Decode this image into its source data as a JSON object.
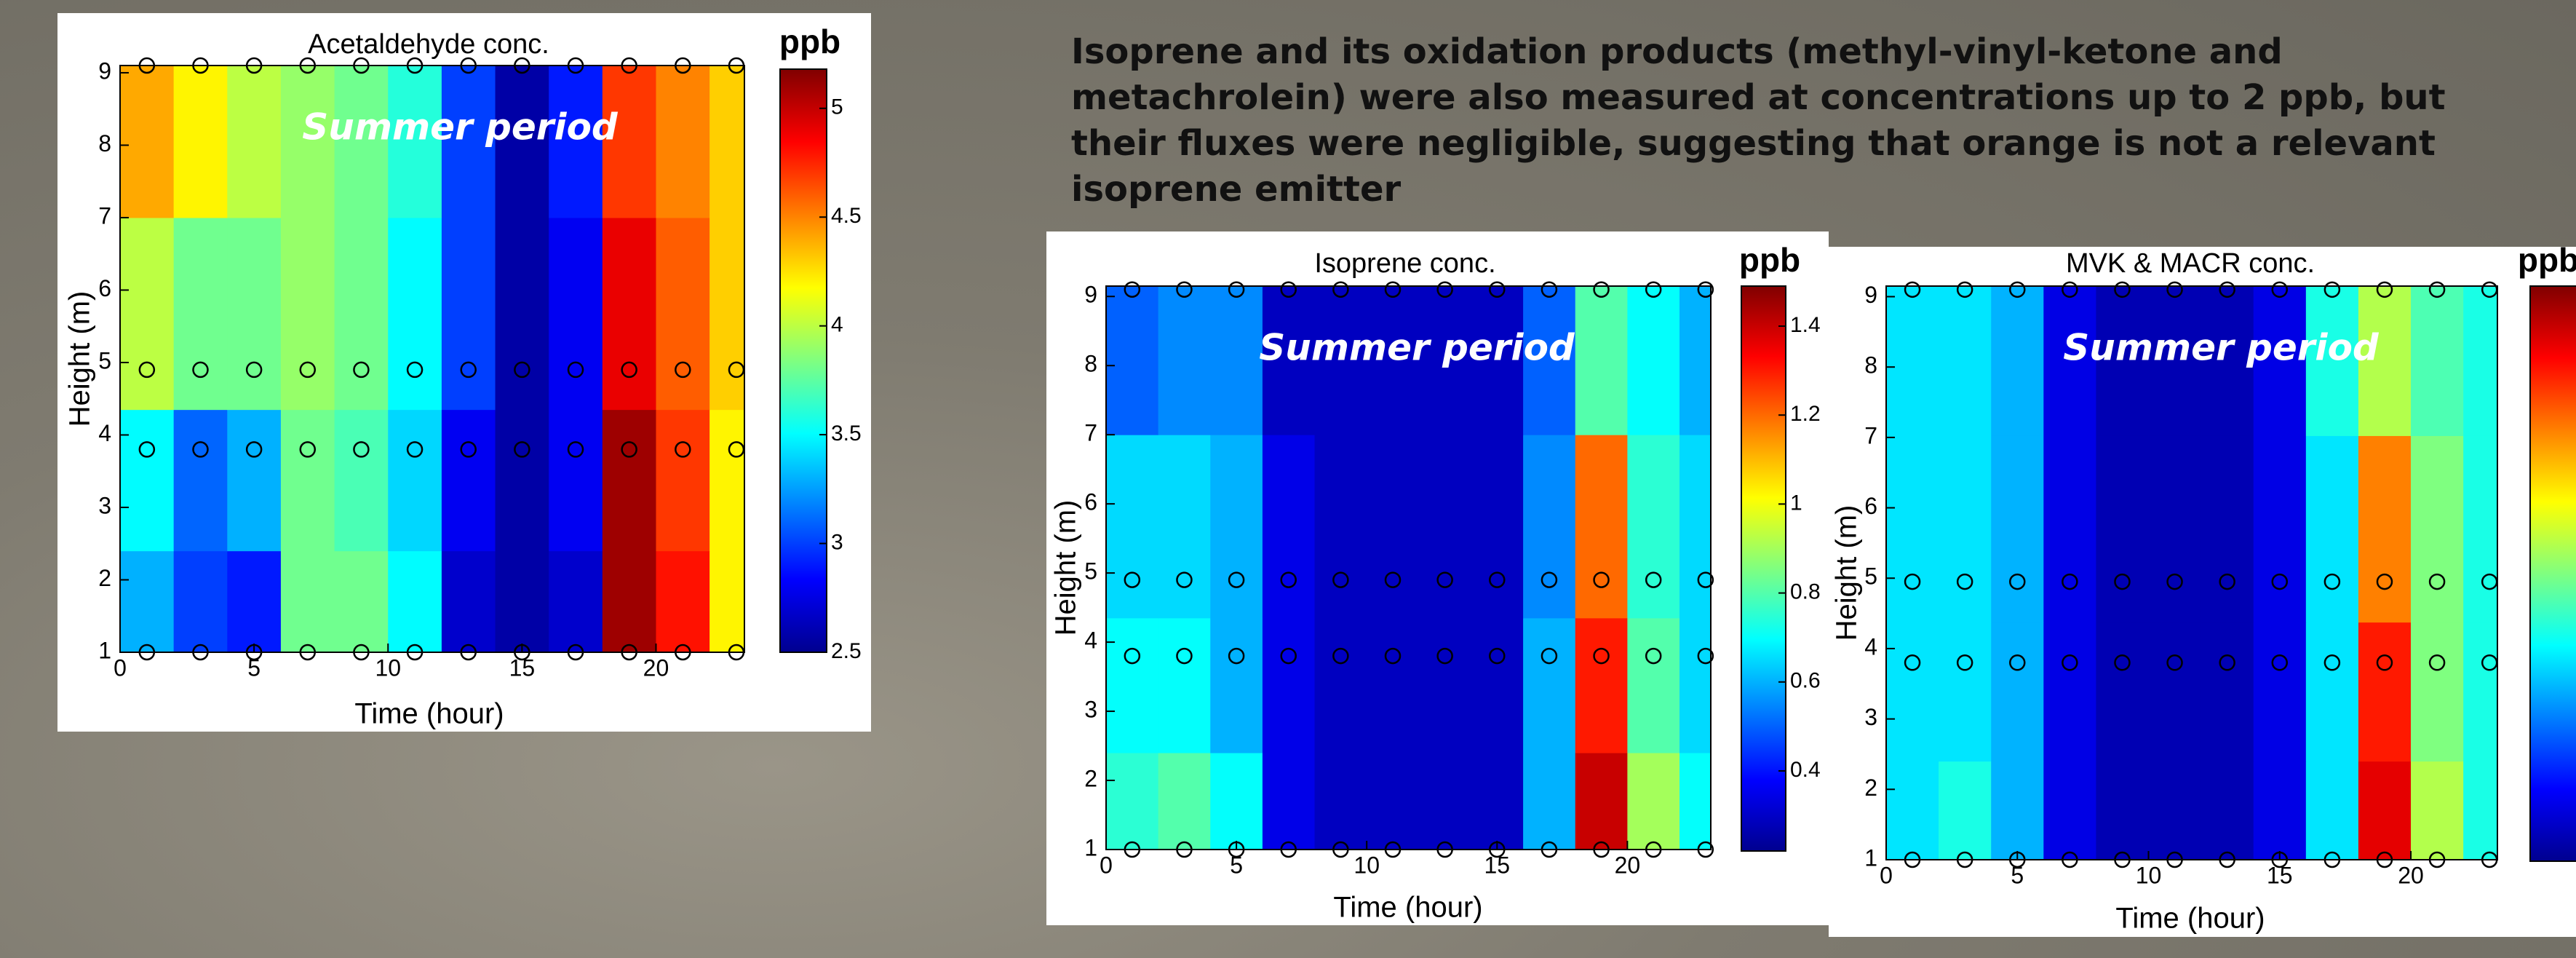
{
  "text": "Isoprene and its oxidation products (methyl-vinyl-ketone and metachrolein) were also measured at concentrations up to 2 ppb, but their fluxes were negligible, suggesting that orange is not a relevant isoprene emitter",
  "chart_data": [
    {
      "type": "contour",
      "title": "Acetaldehyde conc.",
      "annotation": "Summer period",
      "xlabel": "Time (hour)",
      "ylabel": "Height (m)",
      "colorbar_label": "ppb",
      "colormap": "jet",
      "x": [
        1,
        3,
        5,
        7,
        9,
        11,
        13,
        15,
        17,
        19,
        21,
        23
      ],
      "y": [
        1,
        3.8,
        4.9,
        9.1
      ],
      "values": [
        [
          3.3,
          3.0,
          2.9,
          3.8,
          3.8,
          3.5,
          2.7,
          2.6,
          2.7,
          5.1,
          4.8,
          4.2
        ],
        [
          3.5,
          3.1,
          3.3,
          3.8,
          3.7,
          3.4,
          2.8,
          2.6,
          2.8,
          5.1,
          4.7,
          4.2
        ],
        [
          4.0,
          3.8,
          3.8,
          3.9,
          3.8,
          3.5,
          3.0,
          2.6,
          2.8,
          4.9,
          4.6,
          4.3
        ],
        [
          4.4,
          4.2,
          4.0,
          3.9,
          3.8,
          3.6,
          3.0,
          2.6,
          2.9,
          4.7,
          4.5,
          4.3
        ]
      ],
      "xlim": [
        0,
        23.3
      ],
      "ylim": [
        1,
        9.1
      ],
      "xticks": [
        0,
        5,
        10,
        15,
        20
      ],
      "yticks": [
        1,
        2,
        3,
        4,
        5,
        6,
        7,
        8,
        9
      ],
      "zlim": [
        2.5,
        5.18
      ],
      "zticks": [
        2.5,
        3,
        3.5,
        4,
        4.5,
        5
      ]
    },
    {
      "type": "contour",
      "title": "Isoprene conc.",
      "annotation": "Summer period",
      "xlabel": "Time (hour)",
      "ylabel": "Height (m)",
      "colorbar_label": "ppb",
      "colormap": "jet",
      "x": [
        1,
        3,
        5,
        7,
        9,
        11,
        13,
        15,
        17,
        19,
        21,
        23
      ],
      "y": [
        1,
        3.8,
        4.9,
        9.1
      ],
      "values": [
        [
          0.75,
          0.8,
          0.7,
          0.35,
          0.3,
          0.3,
          0.3,
          0.3,
          0.6,
          1.4,
          0.9,
          0.7
        ],
        [
          0.7,
          0.7,
          0.6,
          0.35,
          0.3,
          0.3,
          0.3,
          0.3,
          0.6,
          1.3,
          0.8,
          0.65
        ],
        [
          0.65,
          0.65,
          0.6,
          0.35,
          0.3,
          0.3,
          0.3,
          0.3,
          0.55,
          1.2,
          0.75,
          0.65
        ],
        [
          0.5,
          0.55,
          0.55,
          0.3,
          0.3,
          0.3,
          0.3,
          0.3,
          0.5,
          0.8,
          0.7,
          0.6
        ]
      ],
      "xlim": [
        0,
        23.2
      ],
      "ylim": [
        1,
        9.15
      ],
      "xticks": [
        0,
        5,
        10,
        15,
        20
      ],
      "yticks": [
        1,
        2,
        3,
        4,
        5,
        6,
        7,
        8,
        9
      ],
      "zlim": [
        0.22,
        1.49
      ],
      "zticks": [
        0.4,
        0.6,
        0.8,
        1,
        1.2,
        1.4
      ]
    },
    {
      "type": "contour",
      "title": "MVK & MACR conc.",
      "annotation": "Summer period",
      "xlabel": "Time (hour)",
      "ylabel": "Height (m)",
      "colorbar_label": "ppb",
      "colormap": "jet",
      "x": [
        1,
        3,
        5,
        7,
        9,
        11,
        13,
        15,
        17,
        19,
        21,
        23
      ],
      "y": [
        1,
        3.8,
        4.95,
        9.1
      ],
      "values": [
        [
          0.55,
          0.6,
          0.5,
          0.3,
          0.25,
          0.25,
          0.25,
          0.3,
          0.55,
          1.1,
          0.75,
          0.6
        ],
        [
          0.55,
          0.55,
          0.5,
          0.3,
          0.25,
          0.25,
          0.25,
          0.3,
          0.55,
          1.05,
          0.7,
          0.6
        ],
        [
          0.55,
          0.55,
          0.5,
          0.3,
          0.25,
          0.25,
          0.25,
          0.3,
          0.55,
          0.95,
          0.7,
          0.6
        ],
        [
          0.55,
          0.55,
          0.5,
          0.3,
          0.25,
          0.25,
          0.25,
          0.3,
          0.6,
          0.75,
          0.65,
          0.6
        ]
      ],
      "xlim": [
        0,
        23.3
      ],
      "ylim": [
        1,
        9.15
      ],
      "xticks": [
        0,
        5,
        10,
        15,
        20
      ],
      "yticks": [
        1,
        2,
        3,
        4,
        5,
        6,
        7,
        8,
        9
      ],
      "zlim": [
        0.2,
        1.2
      ]
    }
  ]
}
